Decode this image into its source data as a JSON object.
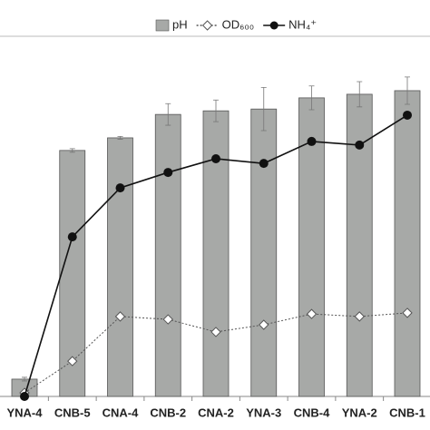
{
  "chart_data": {
    "type": "bar",
    "categories": [
      "YNA-4",
      "CNB-5",
      "CNA-4",
      "CNB-2",
      "CNA-2",
      "YNA-3",
      "CNB-4",
      "YNA-2",
      "CNB-1"
    ],
    "ylim": [
      0,
      100
    ],
    "series": [
      {
        "name": "pH",
        "type": "bar",
        "color": "#a7a9a7",
        "edge": "#555555",
        "values": [
          4.8,
          68.3,
          71.8,
          78.3,
          79.3,
          79.8,
          82.9,
          83.9,
          84.9
        ],
        "errors": [
          0.5,
          0.5,
          0.4,
          3,
          3,
          6,
          3.3,
          3.5,
          3.8
        ]
      },
      {
        "name": "OD₆₀₀",
        "type": "line",
        "color": "#555555",
        "marker": "open",
        "dash": "2,2",
        "values": [
          1,
          9.8,
          22.2,
          21.4,
          17.9,
          19.9,
          22.9,
          22.2,
          23.2
        ]
      },
      {
        "name": "NH₄⁺",
        "type": "line",
        "color": "#111111",
        "marker": "filled",
        "values": [
          0,
          44.3,
          57.9,
          62.2,
          66,
          64.7,
          70.8,
          69.8,
          78.1
        ]
      }
    ]
  }
}
